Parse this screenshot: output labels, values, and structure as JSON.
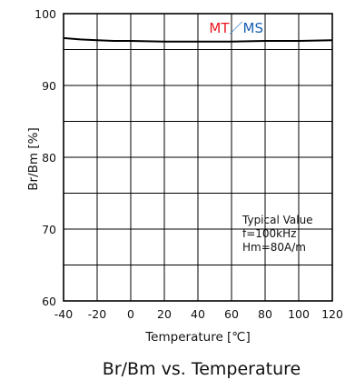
{
  "chart_data": {
    "type": "line",
    "title": "Br/Bm vs. Temperature",
    "xlabel": "Temperature [℃]",
    "ylabel": "Br/Bm [%]",
    "xlim": [
      -40,
      120
    ],
    "ylim": [
      60,
      100
    ],
    "x_ticks": [
      "-40",
      "-20",
      "0",
      "20",
      "40",
      "60",
      "80",
      "100",
      "120"
    ],
    "y_ticks": [
      "60",
      "70",
      "80",
      "90",
      "100"
    ],
    "grid": true,
    "legend": {
      "position": "top-right",
      "parts": [
        {
          "text": "MT",
          "color": "#e8141e"
        },
        {
          "text": "／",
          "color": "#2b7fd0"
        },
        {
          "text": "MS",
          "color": "#1a5fb4"
        }
      ]
    },
    "series": [
      {
        "x": [
          -40,
          -30,
          -20,
          -10,
          0,
          20,
          40,
          60,
          80,
          100,
          120
        ],
        "y": [
          96.6,
          96.4,
          96.3,
          96.2,
          96.2,
          96.1,
          96.1,
          96.1,
          96.2,
          96.2,
          96.3
        ],
        "color": "#000000"
      }
    ],
    "annotation": [
      "Typical Value",
      "f=100kHz",
      "Hm=80A/m"
    ]
  }
}
